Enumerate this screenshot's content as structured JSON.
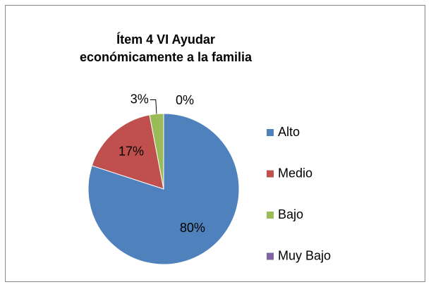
{
  "chart_data": {
    "type": "pie",
    "title": "Ítem 4 VI Ayudar económicamente a la familia",
    "categories": [
      "Alto",
      "Medio",
      "Bajo",
      "Muy Bajo"
    ],
    "values": [
      80,
      17,
      3,
      0
    ],
    "value_labels": [
      "80%",
      "17%",
      "3%",
      "0%"
    ],
    "colors": [
      "#4f81bd",
      "#c0504d",
      "#9bbb59",
      "#8064a2"
    ],
    "legend": "right"
  }
}
